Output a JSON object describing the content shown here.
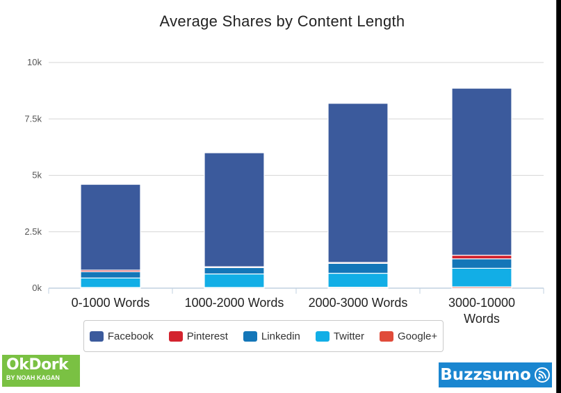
{
  "chart_data": {
    "type": "bar",
    "stacked": true,
    "title": "Average Shares by Content Length",
    "categories": [
      "0-1000 Words",
      "1000-2000 Words",
      "2000-3000 Words",
      "3000-10000 Words"
    ],
    "category_label_lines": [
      [
        "0-1000 Words"
      ],
      [
        "1000-2000 Words"
      ],
      [
        "2000-3000 Words"
      ],
      [
        "3000-10000",
        "Words"
      ]
    ],
    "series": [
      {
        "name": "Google+",
        "color": "#e04b3a",
        "values": [
          30,
          30,
          40,
          60
        ]
      },
      {
        "name": "Twitter",
        "color": "#12aee6",
        "values": [
          420,
          600,
          620,
          820
        ]
      },
      {
        "name": "Linkedin",
        "color": "#1476b8",
        "values": [
          280,
          280,
          440,
          420
        ]
      },
      {
        "name": "Pinterest",
        "color": "#d3232e",
        "values": [
          70,
          40,
          40,
          160
        ]
      },
      {
        "name": "Facebook",
        "color": "#3b5a9c",
        "values": [
          3800,
          5050,
          7050,
          7400
        ]
      }
    ],
    "legend_order": [
      "Facebook",
      "Pinterest",
      "Linkedin",
      "Twitter",
      "Google+"
    ],
    "yticks": [
      {
        "value": 0,
        "label": "0k"
      },
      {
        "value": 2500,
        "label": "2.5k"
      },
      {
        "value": 5000,
        "label": "5k"
      },
      {
        "value": 7500,
        "label": "7.5k"
      },
      {
        "value": 10000,
        "label": "10k"
      }
    ],
    "ylim": [
      0,
      10000
    ],
    "xlabel": "",
    "ylabel": "",
    "grid": true,
    "legend_position": "bottom"
  },
  "logos": {
    "okdork_name": "OkDork",
    "okdork_sub": "BY NOAH KAGAN",
    "buzzsumo": "Buzzsumo"
  }
}
